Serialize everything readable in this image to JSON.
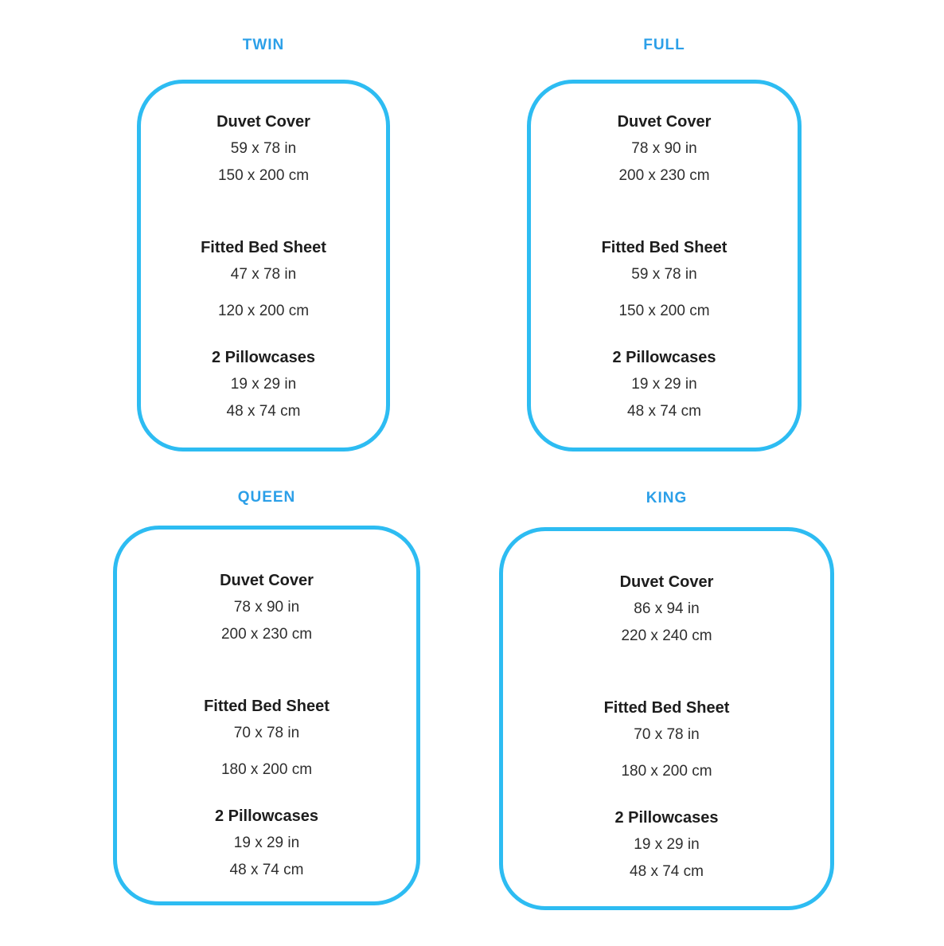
{
  "accent": {
    "title_color": "#2b9fe8",
    "border_color": "#2dbcf2",
    "text_color": "#1d1d1d"
  },
  "panels": [
    {
      "title": "TWIN",
      "items": [
        {
          "name": "Duvet Cover",
          "inches": "59 x 78 in",
          "cm": "150 x 200 cm"
        },
        {
          "name": "Fitted Bed Sheet",
          "inches": "47 x 78 in",
          "cm": "120 x 200 cm"
        },
        {
          "name": "2 Pillowcases",
          "inches": "19 x 29 in",
          "cm": "48 x 74 cm"
        }
      ]
    },
    {
      "title": "FULL",
      "items": [
        {
          "name": "Duvet Cover",
          "inches": "78 x 90 in",
          "cm": "200 x 230 cm"
        },
        {
          "name": "Fitted Bed Sheet",
          "inches": "59 x 78 in",
          "cm": "150 x 200 cm"
        },
        {
          "name": "2 Pillowcases",
          "inches": "19 x 29 in",
          "cm": "48 x 74 cm"
        }
      ]
    },
    {
      "title": "QUEEN",
      "items": [
        {
          "name": "Duvet Cover",
          "inches": "78 x 90 in",
          "cm": "200 x 230 cm"
        },
        {
          "name": "Fitted Bed Sheet",
          "inches": "70 x 78 in",
          "cm": "180 x 200 cm"
        },
        {
          "name": "2 Pillowcases",
          "inches": "19 x 29 in",
          "cm": "48 x 74 cm"
        }
      ]
    },
    {
      "title": "KING",
      "items": [
        {
          "name": "Duvet Cover",
          "inches": "86 x 94 in",
          "cm": "220 x 240 cm"
        },
        {
          "name": "Fitted Bed Sheet",
          "inches": "70 x 78 in",
          "cm": "180 x 200 cm"
        },
        {
          "name": "2 Pillowcases",
          "inches": "19 x 29 in",
          "cm": "48 x 74 cm"
        }
      ]
    }
  ]
}
